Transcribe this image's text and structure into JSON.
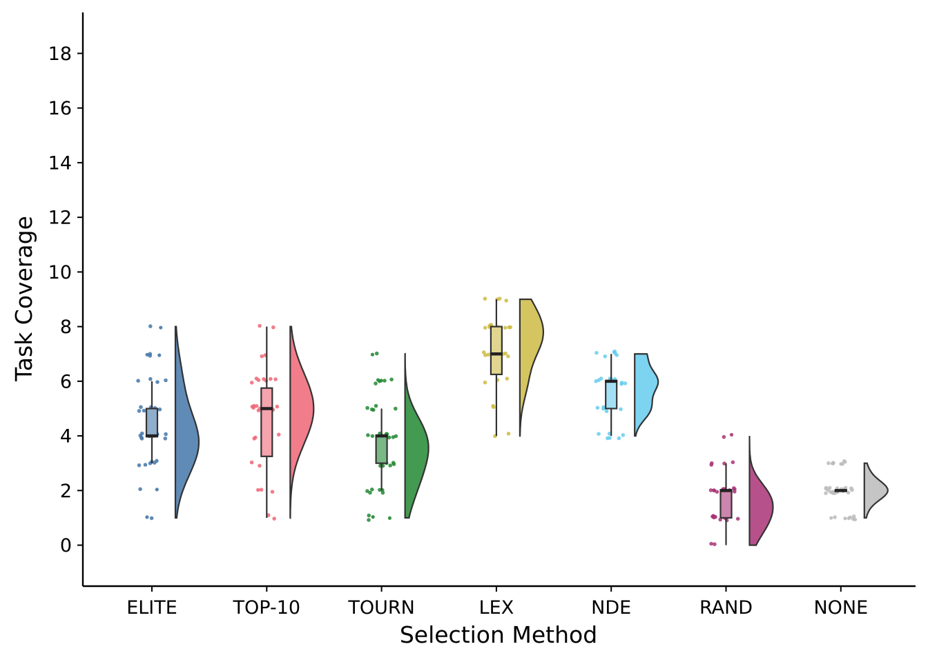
{
  "chart_data": {
    "type": "raincloud",
    "title": "",
    "xlabel": "Selection Method",
    "ylabel": "Task Coverage",
    "ylim": [
      -1.5,
      19.5
    ],
    "yticks": [
      0,
      2,
      4,
      6,
      8,
      10,
      12,
      14,
      16,
      18
    ],
    "categories": [
      "ELITE",
      "TOP-10",
      "TOURN",
      "LEX",
      "NDE",
      "RAND",
      "NONE"
    ],
    "groups": [
      {
        "name": "ELITE",
        "color": "#4477AA",
        "box": {
          "whisker_low": 3,
          "q1": 4,
          "median": 4,
          "q3": 5,
          "whisker_high": 6
        },
        "outliers": [
          1,
          2,
          7,
          7,
          8
        ],
        "points": [
          1,
          2,
          3,
          3,
          3,
          3,
          3,
          3,
          4,
          4,
          4,
          4,
          4,
          4,
          4,
          4,
          4,
          4,
          4,
          4,
          4,
          5,
          5,
          5,
          5,
          5,
          5,
          6,
          6,
          6,
          6,
          7,
          7,
          8
        ],
        "density": {
          "min": 1,
          "max": 8,
          "peaks": [
            [
              4,
              1.0
            ],
            [
              6,
              0.35
            ],
            [
              3,
              0.5
            ]
          ]
        }
      },
      {
        "name": "TOP-10",
        "color": "#EE6677",
        "box": {
          "whisker_low": 1,
          "q1": 3.25,
          "median": 5,
          "q3": 5.75,
          "whisker_high": 8
        },
        "outliers": [],
        "points": [
          1,
          1,
          2,
          2,
          2,
          3,
          3,
          4,
          4,
          4,
          4,
          4,
          4,
          5,
          5,
          5,
          5,
          5,
          5,
          5,
          5,
          5,
          5,
          5,
          6,
          6,
          6,
          6,
          6,
          6,
          6,
          7,
          7,
          8,
          8
        ],
        "density": {
          "min": 1,
          "max": 8,
          "peaks": [
            [
              5,
              1.0
            ],
            [
              6,
              0.5
            ],
            [
              4,
              0.5
            ]
          ]
        }
      },
      {
        "name": "TOURN",
        "color": "#228833",
        "box": {
          "whisker_low": 2,
          "q1": 3,
          "median": 4,
          "q3": 4,
          "whisker_high": 5
        },
        "outliers": [
          1,
          1,
          6,
          6,
          6,
          7
        ],
        "points": [
          1,
          1,
          2,
          2,
          2,
          2,
          2,
          2,
          3,
          3,
          3,
          3,
          3,
          3,
          3,
          4,
          4,
          4,
          4,
          4,
          4,
          4,
          4,
          4,
          4,
          4,
          4,
          5,
          5,
          5,
          5,
          5,
          6,
          6,
          6,
          7
        ],
        "density": {
          "min": 1,
          "max": 7,
          "peaks": [
            [
              4,
              1.0
            ],
            [
              3,
              0.6
            ],
            [
              2,
              0.4
            ]
          ]
        }
      },
      {
        "name": "LEX",
        "color": "#CCBB44",
        "box": {
          "whisker_low": 4,
          "q1": 6.25,
          "median": 7,
          "q3": 8,
          "whisker_high": 9
        },
        "outliers": [],
        "points": [
          4,
          4,
          5,
          5,
          6,
          6,
          6,
          7,
          7,
          7,
          7,
          7,
          7,
          7,
          7,
          8,
          8,
          8,
          8,
          8,
          8,
          8,
          8,
          8,
          8,
          9,
          9,
          9,
          9
        ],
        "density": {
          "min": 4,
          "max": 9,
          "peaks": [
            [
              7.5,
              1.0
            ],
            [
              8.5,
              0.7
            ],
            [
              6,
              0.4
            ]
          ]
        }
      },
      {
        "name": "NDE",
        "color": "#66CCEE",
        "box": {
          "whisker_low": 4,
          "q1": 5,
          "median": 6,
          "q3": 6,
          "whisker_high": 7
        },
        "outliers": [],
        "points": [
          4,
          4,
          4,
          4,
          4,
          4,
          5,
          5,
          5,
          5,
          5,
          5,
          5,
          5,
          5,
          6,
          6,
          6,
          6,
          6,
          6,
          6,
          6,
          6,
          6,
          6,
          6,
          7,
          7,
          7,
          7,
          7,
          7
        ],
        "density": {
          "min": 4,
          "max": 7,
          "peaks": [
            [
              6,
              1.0
            ],
            [
              5,
              0.7
            ],
            [
              7,
              0.5
            ]
          ]
        }
      },
      {
        "name": "RAND",
        "color": "#AA3377",
        "box": {
          "whisker_low": 0,
          "q1": 1,
          "median": 2,
          "q3": 2,
          "whisker_high": 3
        },
        "outliers": [
          4
        ],
        "points": [
          0,
          0,
          1,
          1,
          1,
          1,
          1,
          1,
          1,
          1,
          1,
          1,
          1,
          2,
          2,
          2,
          2,
          2,
          2,
          2,
          2,
          2,
          2,
          2,
          2,
          2,
          3,
          3,
          3,
          3,
          4
        ],
        "density": {
          "min": 0,
          "max": 4,
          "peaks": [
            [
              1.8,
              1.0
            ],
            [
              1,
              0.8
            ],
            [
              0.4,
              0.3
            ]
          ]
        }
      },
      {
        "name": "NONE",
        "color": "#BBBBBB",
        "box": {
          "whisker_low": 2,
          "q1": 2,
          "median": 2,
          "q3": 2,
          "whisker_high": 2
        },
        "outliers": [
          1,
          1,
          1,
          1,
          3,
          3,
          3,
          3
        ],
        "points": [
          1,
          1,
          1,
          1,
          2,
          2,
          2,
          2,
          2,
          2,
          2,
          2,
          2,
          2,
          2,
          2,
          2,
          2,
          2,
          2,
          2,
          2,
          2,
          2,
          3,
          3,
          3,
          3
        ],
        "density": {
          "min": 1,
          "max": 3,
          "peaks": [
            [
              2,
              1.0
            ],
            [
              2.7,
              0.15
            ],
            [
              1.3,
              0.1
            ]
          ]
        }
      }
    ]
  }
}
